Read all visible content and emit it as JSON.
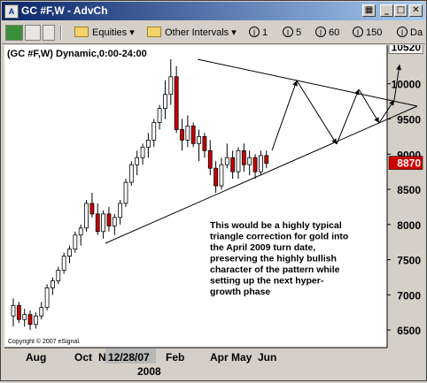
{
  "window": {
    "title": "GC #F,W - AdvCh",
    "icon_label": "A",
    "controls": {
      "tile_icon": "tile-icon",
      "minimize_icon": "minimize-icon",
      "maximize_icon": "maximize-icon",
      "close_icon": "close-icon"
    }
  },
  "toolbar": {
    "symbols_dropdown": "Equities",
    "intervals_dropdown": "Other Intervals",
    "intervals": [
      "1",
      "5",
      "60",
      "150",
      "Da"
    ]
  },
  "chart_data": {
    "type": "candlestick",
    "header": "(GC #F,W) Dynamic,0:00-24:00",
    "copyright": "Copyright © 2007 eSignal.",
    "y_ticks": [
      6500,
      7000,
      7500,
      8000,
      8500,
      9000,
      9500,
      10000
    ],
    "y_range": [
      6250,
      10550
    ],
    "highlight_labels": [
      {
        "value": "10520",
        "y": 10520,
        "background": "#ffffff",
        "color": "#000000"
      },
      {
        "value": "8870",
        "y": 8870,
        "background": "#cc0000",
        "color": "#ffffff"
      }
    ],
    "x_labels": [
      "Aug",
      "Oct",
      "Nov",
      "12/28/07",
      "Feb",
      "Apr",
      "May",
      "Jun"
    ],
    "x_year": "2008",
    "colors": {
      "up": "#ffffff",
      "down": "#cc0000",
      "wick": "#000000",
      "lines": "#000000"
    },
    "candles": [
      {
        "o": 6700,
        "h": 6950,
        "l": 6550,
        "c": 6850
      },
      {
        "o": 6850,
        "h": 6900,
        "l": 6600,
        "c": 6650
      },
      {
        "o": 6650,
        "h": 6800,
        "l": 6550,
        "c": 6720
      },
      {
        "o": 6720,
        "h": 6780,
        "l": 6500,
        "c": 6580
      },
      {
        "o": 6580,
        "h": 6750,
        "l": 6520,
        "c": 6700
      },
      {
        "o": 6700,
        "h": 6900,
        "l": 6650,
        "c": 6820
      },
      {
        "o": 6820,
        "h": 7150,
        "l": 6780,
        "c": 7100
      },
      {
        "o": 7100,
        "h": 7250,
        "l": 7000,
        "c": 7200
      },
      {
        "o": 7200,
        "h": 7400,
        "l": 7150,
        "c": 7350
      },
      {
        "o": 7350,
        "h": 7600,
        "l": 7300,
        "c": 7550
      },
      {
        "o": 7550,
        "h": 7700,
        "l": 7450,
        "c": 7650
      },
      {
        "o": 7650,
        "h": 7900,
        "l": 7600,
        "c": 7850
      },
      {
        "o": 7850,
        "h": 8000,
        "l": 7700,
        "c": 7950
      },
      {
        "o": 7950,
        "h": 8350,
        "l": 7900,
        "c": 8300
      },
      {
        "o": 8300,
        "h": 8450,
        "l": 8100,
        "c": 8150
      },
      {
        "o": 8150,
        "h": 8300,
        "l": 7850,
        "c": 7900
      },
      {
        "o": 7900,
        "h": 8200,
        "l": 7800,
        "c": 8150
      },
      {
        "o": 8150,
        "h": 8250,
        "l": 7900,
        "c": 7980
      },
      {
        "o": 7980,
        "h": 8150,
        "l": 7850,
        "c": 8100
      },
      {
        "o": 8100,
        "h": 8350,
        "l": 8000,
        "c": 8300
      },
      {
        "o": 8300,
        "h": 8650,
        "l": 8250,
        "c": 8600
      },
      {
        "o": 8600,
        "h": 8900,
        "l": 8550,
        "c": 8850
      },
      {
        "o": 8850,
        "h": 9050,
        "l": 8700,
        "c": 8950
      },
      {
        "o": 8950,
        "h": 9150,
        "l": 8850,
        "c": 9100
      },
      {
        "o": 9100,
        "h": 9300,
        "l": 8950,
        "c": 9200
      },
      {
        "o": 9200,
        "h": 9500,
        "l": 9100,
        "c": 9450
      },
      {
        "o": 9450,
        "h": 9700,
        "l": 9350,
        "c": 9650
      },
      {
        "o": 9650,
        "h": 10050,
        "l": 9500,
        "c": 9850
      },
      {
        "o": 9850,
        "h": 10350,
        "l": 9700,
        "c": 10100
      },
      {
        "o": 10100,
        "h": 10250,
        "l": 9300,
        "c": 9350
      },
      {
        "o": 9350,
        "h": 9500,
        "l": 9050,
        "c": 9200
      },
      {
        "o": 9200,
        "h": 9550,
        "l": 9100,
        "c": 9400
      },
      {
        "o": 9400,
        "h": 9450,
        "l": 9100,
        "c": 9150
      },
      {
        "o": 9150,
        "h": 9350,
        "l": 8900,
        "c": 9250
      },
      {
        "o": 9250,
        "h": 9300,
        "l": 8950,
        "c": 9050
      },
      {
        "o": 9050,
        "h": 9200,
        "l": 8700,
        "c": 8800
      },
      {
        "o": 8800,
        "h": 8900,
        "l": 8450,
        "c": 8550
      },
      {
        "o": 8550,
        "h": 8950,
        "l": 8500,
        "c": 8850
      },
      {
        "o": 8850,
        "h": 9150,
        "l": 8800,
        "c": 8950
      },
      {
        "o": 8950,
        "h": 9050,
        "l": 8650,
        "c": 8750
      },
      {
        "o": 8750,
        "h": 9100,
        "l": 8650,
        "c": 9050
      },
      {
        "o": 9050,
        "h": 9150,
        "l": 8750,
        "c": 8850
      },
      {
        "o": 8850,
        "h": 9050,
        "l": 8700,
        "c": 8950
      },
      {
        "o": 8950,
        "h": 9000,
        "l": 8650,
        "c": 8750
      },
      {
        "o": 8750,
        "h": 9050,
        "l": 8700,
        "c": 8980
      },
      {
        "o": 8980,
        "h": 9050,
        "l": 8800,
        "c": 8870
      }
    ],
    "annotation": [
      "This would be a highly typical",
      "triangle correction for gold into",
      "the April 2009 turn date,",
      "preserving the highly bullish",
      "character of the pattern while",
      "setting up the next hyper-",
      "growth phase"
    ]
  }
}
